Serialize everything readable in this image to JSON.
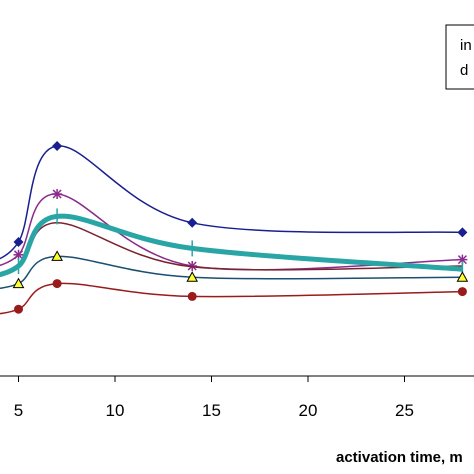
{
  "chart_data": {
    "type": "line",
    "xlabel": "activation time, m",
    "ylabel": "",
    "x_ticks": [
      "5",
      "10",
      "15",
      "20",
      "25"
    ],
    "xlim": [
      0,
      29.5
    ],
    "legend_position": "top-right",
    "legend_entries": [
      "in",
      "d"
    ],
    "grid": false,
    "series": [
      {
        "color": "#1a1f8f",
        "marker": "diamond",
        "x": [
          5,
          7,
          14,
          28
        ],
        "values": [
          40,
          100,
          52,
          46
        ]
      },
      {
        "color": "#8b2a8c",
        "marker": "star",
        "x": [
          5,
          7,
          14,
          28
        ],
        "values": [
          32,
          70,
          25,
          29
        ]
      },
      {
        "color": "#7a2330",
        "marker": "none",
        "x": [
          5,
          7,
          14,
          28
        ],
        "values": [
          24,
          52,
          24.5,
          25
        ]
      },
      {
        "color": "#2aa5a5",
        "marker": "bar",
        "x": [
          5,
          7,
          14,
          28
        ],
        "values": [
          25,
          56,
          36,
          23
        ]
      },
      {
        "color": "#1a4f70",
        "marker": "triangle",
        "x": [
          5,
          7,
          14,
          28
        ],
        "values": [
          14,
          31,
          18,
          18
        ]
      },
      {
        "color": "#9a1b1b",
        "marker": "circle",
        "x": [
          5,
          7,
          14,
          28
        ],
        "values": [
          -2,
          14,
          6,
          9
        ]
      }
    ]
  }
}
